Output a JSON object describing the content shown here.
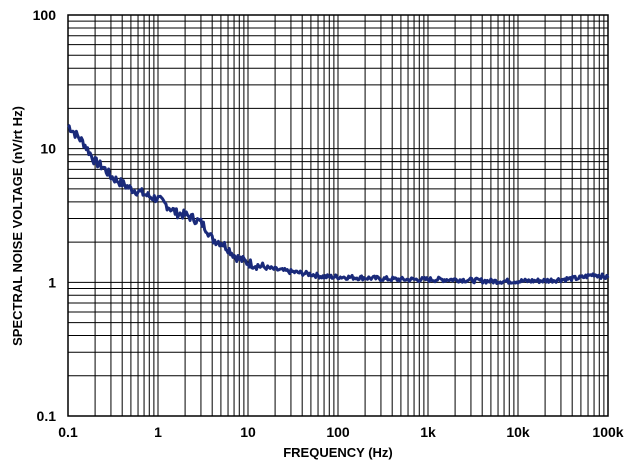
{
  "chart_data": {
    "type": "line",
    "title": "",
    "xlabel": "FREQUENCY  (Hz)",
    "ylabel": "SPECTRAL  NOISE  VOLTAGE  (nV/rt Hz)",
    "x_scale": "log",
    "y_scale": "log",
    "xlim": [
      0.1,
      100000
    ],
    "ylim": [
      0.1,
      100
    ],
    "grid": true,
    "legend": "none",
    "x_ticks": [
      {
        "value": 0.1,
        "label": "0.1"
      },
      {
        "value": 1,
        "label": "1"
      },
      {
        "value": 10,
        "label": "10"
      },
      {
        "value": 100,
        "label": "100"
      },
      {
        "value": 1000,
        "label": "1k"
      },
      {
        "value": 10000,
        "label": "10k"
      },
      {
        "value": 100000,
        "label": "100k"
      }
    ],
    "y_ticks": [
      {
        "value": 0.1,
        "label": "0.1"
      },
      {
        "value": 1,
        "label": "1"
      },
      {
        "value": 10,
        "label": "10"
      },
      {
        "value": 100,
        "label": "100"
      }
    ],
    "series": [
      {
        "color": "#1a2a7a",
        "x": [
          0.1,
          0.12,
          0.15,
          0.2,
          0.25,
          0.3,
          0.4,
          0.5,
          0.6,
          0.8,
          1.0,
          1.3,
          1.6,
          2.0,
          2.5,
          3.0,
          3.5,
          4.0,
          5.0,
          6.0,
          7.0,
          8.0,
          10,
          15,
          20,
          30,
          50,
          70,
          100,
          200,
          500,
          1000,
          2000,
          5000,
          10000,
          20000,
          30000,
          50000,
          70000,
          100000
        ],
        "y": [
          15,
          13,
          11,
          8.0,
          7.2,
          6.2,
          5.5,
          5.0,
          4.8,
          4.4,
          4.2,
          3.7,
          3.3,
          3.2,
          3.0,
          2.8,
          2.5,
          2.1,
          2.0,
          1.8,
          1.6,
          1.5,
          1.4,
          1.3,
          1.25,
          1.2,
          1.15,
          1.1,
          1.1,
          1.08,
          1.05,
          1.05,
          1.05,
          1.02,
          1.02,
          1.03,
          1.05,
          1.08,
          1.15,
          1.08
        ]
      }
    ]
  }
}
